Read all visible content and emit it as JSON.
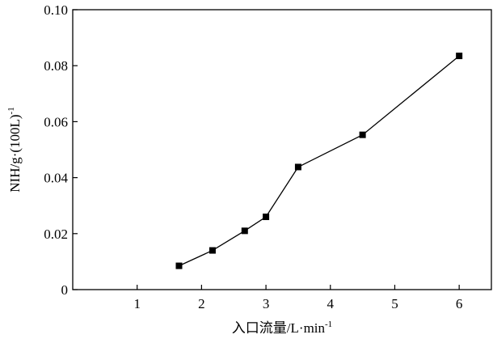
{
  "chart_data": {
    "type": "line",
    "title": "",
    "xlabel": "入口流量/L·min",
    "xlabel_superscript": "-1",
    "ylabel": "NIH/g·(100L)",
    "ylabel_superscript": "-1",
    "xlim": [
      0,
      6.5
    ],
    "ylim": [
      0,
      0.1
    ],
    "x_ticks": [
      1,
      2,
      3,
      4,
      5,
      6
    ],
    "x_tick_labels": [
      "1",
      "2",
      "3",
      "4",
      "5",
      "6"
    ],
    "y_ticks": [
      0,
      0.02,
      0.04,
      0.06,
      0.08,
      0.1
    ],
    "y_tick_labels": [
      "0",
      "0.02",
      "0.04",
      "0.06",
      "0.08",
      "0.10"
    ],
    "grid": false,
    "legend": "none",
    "marker": "square",
    "series": [
      {
        "x": [
          1.65,
          2.17,
          2.67,
          3.0,
          3.5,
          4.5,
          6.0
        ],
        "values": [
          0.0085,
          0.014,
          0.021,
          0.026,
          0.0438,
          0.0553,
          0.0835
        ]
      }
    ]
  },
  "colors": {
    "line": "#000000",
    "marker": "#000000",
    "axis": "#000000",
    "background": "#ffffff"
  }
}
